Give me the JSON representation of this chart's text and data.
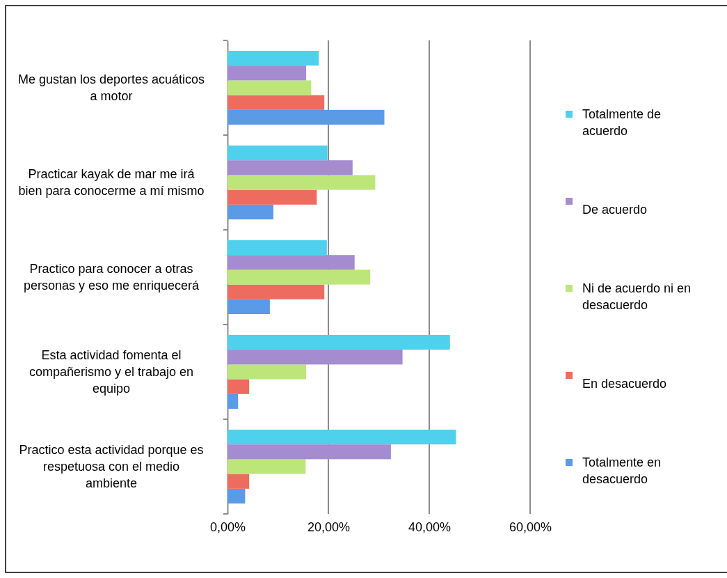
{
  "chart_data": {
    "type": "bar",
    "orientation": "horizontal",
    "categories": [
      "Me gustan los deportes acuáticos a motor",
      "Practicar kayak de mar me irá bien para conocerme a mí mismo",
      "Practico para conocer a otras personas y eso me enriquecerá",
      "Esta actividad fomenta el compañerismo y el trabajo en equipo",
      "Practico esta actividad porque es respetuosa con el medio ambiente"
    ],
    "series": [
      {
        "name": "Totalmente en desacuerdo",
        "color": "#5b9ae6",
        "values": [
          31.1,
          9.1,
          8.4,
          2.1,
          3.5
        ]
      },
      {
        "name": "En desacuerdo",
        "color": "#ee6b60",
        "values": [
          19.2,
          17.7,
          19.2,
          4.3,
          4.3
        ]
      },
      {
        "name": "Ni de acuerdo ni en desacuerdo",
        "color": "#bde67a",
        "values": [
          16.6,
          29.3,
          28.3,
          15.6,
          15.5
        ]
      },
      {
        "name": "De acuerdo",
        "color": "#a58bd0",
        "values": [
          15.6,
          24.8,
          25.2,
          34.7,
          32.4
        ]
      },
      {
        "name": "Totalmente de acuerdo",
        "color": "#4fd0ec",
        "values": [
          18.1,
          19.8,
          19.7,
          44.1,
          45.3
        ]
      }
    ],
    "xlim": [
      0,
      60
    ],
    "xticks": [
      {
        "value": 0,
        "label": "0,00%"
      },
      {
        "value": 20,
        "label": "20,00%"
      },
      {
        "value": 40,
        "label": "40,00%"
      },
      {
        "value": 60,
        "label": "60,00%"
      }
    ],
    "grid": "x",
    "legend": "right"
  }
}
